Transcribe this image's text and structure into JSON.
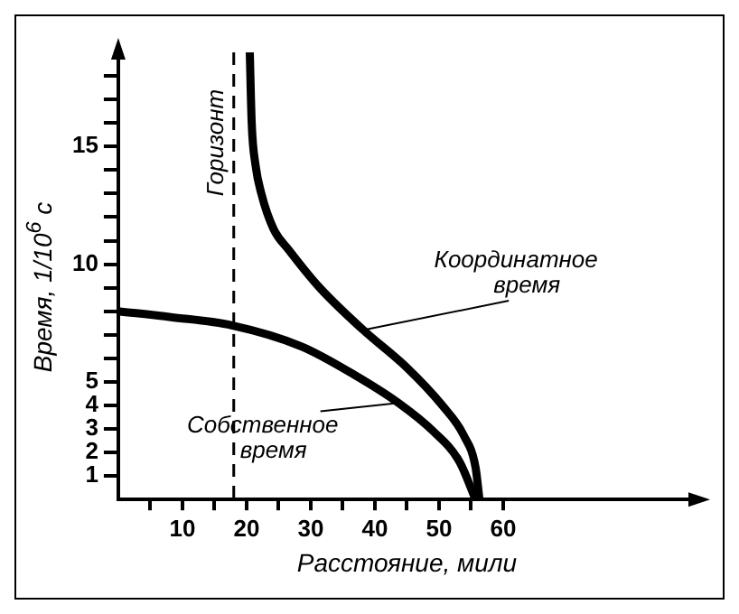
{
  "chart_data": {
    "type": "line",
    "xlabel": "Расстояние, мили",
    "ylabel": "Время, 1/10$^{6}$ с",
    "xlim": [
      0,
      90
    ],
    "ylim": [
      0,
      19
    ],
    "xticks": [
      {
        "value": 5,
        "label": null
      },
      10,
      {
        "value": 15,
        "label": null
      },
      20,
      {
        "value": 25,
        "label": null
      },
      30,
      {
        "value": 35,
        "label": null
      },
      40,
      {
        "value": 45,
        "label": null
      },
      50,
      {
        "value": 55,
        "label": null
      },
      60
    ],
    "yticks": [
      1,
      2,
      3,
      4,
      5,
      {
        "value": 6,
        "label": null
      },
      {
        "value": 7,
        "label": null
      },
      {
        "value": 8,
        "label": null
      },
      {
        "value": 9,
        "label": null
      },
      10,
      {
        "value": 11,
        "label": null
      },
      {
        "value": 12,
        "label": null
      },
      {
        "value": 13,
        "label": null
      },
      {
        "value": 14,
        "label": null
      },
      15,
      {
        "value": 16,
        "label": null
      },
      {
        "value": 17,
        "label": null
      },
      {
        "value": 18,
        "label": null
      }
    ],
    "series": [
      {
        "name": "Координатное время",
        "color": "#000000",
        "x": [
          20.5,
          20.8,
          21.4,
          22.3,
          24.2,
          26.6,
          31.4,
          38.2,
          45.0,
          50.5,
          53.9,
          55.7,
          56.3
        ],
        "values": [
          19,
          16,
          14.2,
          13,
          11.5,
          10.6,
          9.0,
          7.2,
          5.6,
          4.0,
          2.7,
          1.35,
          0
        ]
      },
      {
        "name": "Собственное время",
        "color": "#000000",
        "x": [
          0,
          8.2,
          17.7,
          28.6,
          36.8,
          43.7,
          49.1,
          53.2,
          55.7
        ],
        "values": [
          8.0,
          7.75,
          7.4,
          6.5,
          5.3,
          4.1,
          2.9,
          1.6,
          0
        ]
      }
    ],
    "ref_lines": [
      {
        "axis": "x",
        "value": 18,
        "label": "Горизонт",
        "color": "#000000",
        "line_style": "dashed"
      }
    ],
    "grid": false,
    "marker": "none",
    "line_style": "solid"
  }
}
